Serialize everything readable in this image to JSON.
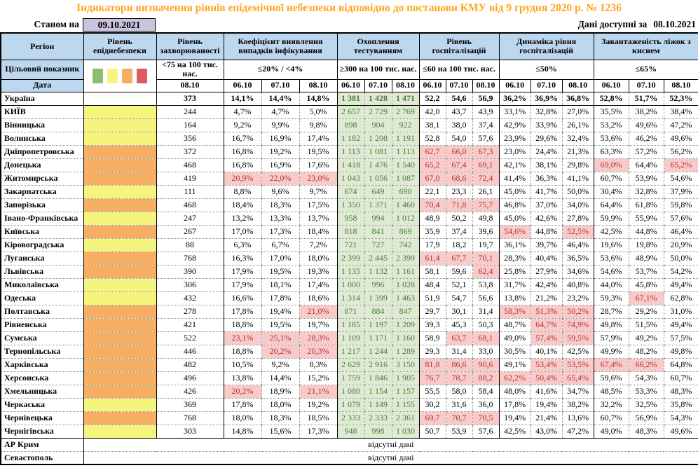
{
  "title": "Індикатори визначення рівнів епідемічної небезпеки відповідно до постанови КМУ від 9 грудня 2020 р. № 1236",
  "as_of_label": "Станом на",
  "as_of_date": "09.10.2021",
  "available_label": "Дані доступні за",
  "available_date": "08.10.2021",
  "no_data_text": "відсутні дані",
  "legend_colors": [
    "#8CBF72",
    "#F5F57E",
    "#F5AE62",
    "#E05C5C"
  ],
  "level_colors": {
    "yellow": "#F5F57E",
    "orange": "#F5AE62"
  },
  "header": {
    "region": "Регіон",
    "target_label": "Цільовий показник",
    "date_label": "Дата",
    "groups": [
      {
        "name": "Рівень епіднебезпеки",
        "target": "",
        "dates": []
      },
      {
        "name": "Рівень захворюваності",
        "target": "<75 на 100 тис. нас.",
        "dates": [
          "08.10"
        ]
      },
      {
        "name": "Коефіцієнт виявлення випадків інфікування",
        "target": "≤20% / <4%",
        "dates": [
          "06.10",
          "07.10",
          "08.10"
        ]
      },
      {
        "name": "Охоплення тестуванням",
        "target": "≥300 на 100 тис. нас.",
        "dates": [
          "06.10",
          "07.10",
          "08.10"
        ]
      },
      {
        "name": "Рівень госпіталізацій",
        "target": "≤60 на 100 тис. нас.",
        "dates": [
          "06.10",
          "07.10",
          "08.10"
        ]
      },
      {
        "name": "Динаміка рівня госпіталізацій",
        "target": "≤50%",
        "dates": [
          "06.10",
          "07.10",
          "08.10"
        ]
      },
      {
        "name": "Завантаженість ліжок з киснем",
        "target": "≤65%",
        "dates": [
          "06.10",
          "07.10",
          "08.10"
        ]
      }
    ]
  },
  "rows": [
    {
      "region": "Україна",
      "national": true,
      "level": "",
      "incidence": "373",
      "detection": [
        "14,1%",
        "14,4%",
        "14,8%"
      ],
      "testing": [
        "1 381",
        "1 428",
        "1 471"
      ],
      "hosp": [
        "52,2",
        "54,6",
        "56,9"
      ],
      "dynamics": [
        "36,2%",
        "36,9%",
        "36,8%"
      ],
      "beds": [
        "52,8%",
        "51,7%",
        "52,3%"
      ]
    },
    {
      "region": "КИЇВ",
      "level": "yellow",
      "incidence": "244",
      "detection": [
        "4,7%",
        "4,7%",
        "5,0%"
      ],
      "testing": [
        "2 657",
        "2 729",
        "2 769"
      ],
      "hosp": [
        "42,0",
        "43,7",
        "43,9"
      ],
      "dynamics": [
        "33,1%",
        "32,8%",
        "27,0%"
      ],
      "beds": [
        "35,5%",
        "38,2%",
        "38,4%"
      ]
    },
    {
      "region": "Вінницька",
      "level": "yellow",
      "incidence": "164",
      "detection": [
        "9,2%",
        "9,9%",
        "9,8%"
      ],
      "testing": [
        "898",
        "904",
        "922"
      ],
      "hosp": [
        "38,1",
        "38,0",
        "37,4"
      ],
      "dynamics": [
        "42,9%",
        "33,9%",
        "26,1%"
      ],
      "beds": [
        "53,2%",
        "49,6%",
        "47,2%"
      ]
    },
    {
      "region": "Волинська",
      "level": "yellow",
      "incidence": "356",
      "detection": [
        "16,7%",
        "16,9%",
        "17,4%"
      ],
      "testing": [
        "1 182",
        "1 208",
        "1 191"
      ],
      "hosp": [
        "52,8",
        "54,0",
        "57,6"
      ],
      "dynamics": [
        "23,9%",
        "29,6%",
        "32,4%"
      ],
      "beds": [
        "53,6%",
        "46,2%",
        "49,6%"
      ]
    },
    {
      "region": "Дніпропетровська",
      "level": "orange",
      "incidence": "372",
      "detection": [
        "16,8%",
        "19,2%",
        "19,5%"
      ],
      "testing": [
        "1 113",
        "1 081",
        "1 113"
      ],
      "hosp": [
        "62,7",
        "66,0",
        "67,3"
      ],
      "hosp_r": [
        1,
        1,
        1
      ],
      "dynamics": [
        "23,0%",
        "24,4%",
        "21,3%"
      ],
      "beds": [
        "63,3%",
        "57,2%",
        "56,2%"
      ]
    },
    {
      "region": "Донецька",
      "level": "orange",
      "incidence": "468",
      "detection": [
        "16,8%",
        "16,9%",
        "17,6%"
      ],
      "testing": [
        "1 418",
        "1 476",
        "1 540"
      ],
      "hosp": [
        "65,2",
        "67,4",
        "69,1"
      ],
      "hosp_r": [
        1,
        1,
        1
      ],
      "dynamics": [
        "42,1%",
        "38,1%",
        "29,8%"
      ],
      "beds": [
        "69,0%",
        "64,4%",
        "65,2%"
      ],
      "bed_r": [
        1,
        0,
        1
      ]
    },
    {
      "region": "Житомирська",
      "level": "orange",
      "incidence": "419",
      "detection": [
        "20,9%",
        "22,0%",
        "23,0%"
      ],
      "det_r": [
        1,
        1,
        1
      ],
      "testing": [
        "1 043",
        "1 056",
        "1 087"
      ],
      "hosp": [
        "67,0",
        "68,6",
        "72,4"
      ],
      "hosp_r": [
        1,
        1,
        1
      ],
      "dynamics": [
        "41,4%",
        "36,3%",
        "41,1%"
      ],
      "beds": [
        "60,7%",
        "53,9%",
        "54,6%"
      ]
    },
    {
      "region": "Закарпатська",
      "level": "yellow",
      "incidence": "111",
      "detection": [
        "8,8%",
        "9,6%",
        "9,7%"
      ],
      "testing": [
        "674",
        "649",
        "690"
      ],
      "hosp": [
        "22,1",
        "23,3",
        "26,1"
      ],
      "dynamics": [
        "45,0%",
        "41,7%",
        "50,0%"
      ],
      "beds": [
        "30,4%",
        "32,8%",
        "37,9%"
      ]
    },
    {
      "region": "Запорізька",
      "level": "orange",
      "incidence": "468",
      "detection": [
        "18,4%",
        "18,3%",
        "17,5%"
      ],
      "testing": [
        "1 350",
        "1 371",
        "1 460"
      ],
      "hosp": [
        "70,4",
        "71,8",
        "75,7"
      ],
      "hosp_r": [
        1,
        1,
        1
      ],
      "dynamics": [
        "46,8%",
        "37,0%",
        "34,0%"
      ],
      "beds": [
        "64,4%",
        "61,8%",
        "59,8%"
      ]
    },
    {
      "region": "Івано-Франківська",
      "level": "yellow",
      "incidence": "247",
      "detection": [
        "13,2%",
        "13,3%",
        "13,7%"
      ],
      "testing": [
        "958",
        "994",
        "1 012"
      ],
      "hosp": [
        "48,9",
        "50,2",
        "49,8"
      ],
      "dynamics": [
        "45,0%",
        "42,6%",
        "27,8%"
      ],
      "beds": [
        "59,9%",
        "55,9%",
        "57,6%"
      ]
    },
    {
      "region": "Київська",
      "level": "orange",
      "incidence": "267",
      "detection": [
        "17,0%",
        "17,3%",
        "18,4%"
      ],
      "testing": [
        "818",
        "841",
        "869"
      ],
      "hosp": [
        "35,9",
        "37,4",
        "39,6"
      ],
      "dynamics": [
        "54,6%",
        "44,8%",
        "52,5%"
      ],
      "dyn_r": [
        1,
        0,
        1
      ],
      "beds": [
        "42,5%",
        "44,8%",
        "46,4%"
      ]
    },
    {
      "region": "Кіровоградська",
      "level": "yellow",
      "incidence": "88",
      "detection": [
        "6,3%",
        "6,7%",
        "7,2%"
      ],
      "testing": [
        "721",
        "727",
        "742"
      ],
      "hosp": [
        "17,9",
        "18,2",
        "19,7"
      ],
      "dynamics": [
        "36,1%",
        "39,7%",
        "46,4%"
      ],
      "beds": [
        "19,6%",
        "19,8%",
        "20,9%"
      ]
    },
    {
      "region": "Луганська",
      "level": "orange",
      "incidence": "768",
      "detection": [
        "16,3%",
        "17,0%",
        "18,0%"
      ],
      "testing": [
        "2 399",
        "2 445",
        "2 399"
      ],
      "hosp": [
        "61,4",
        "67,7",
        "70,1"
      ],
      "hosp_r": [
        1,
        1,
        1
      ],
      "dynamics": [
        "28,3%",
        "40,4%",
        "36,5%"
      ],
      "beds": [
        "53,6%",
        "48,9%",
        "50,0%"
      ]
    },
    {
      "region": "Львівська",
      "level": "orange",
      "incidence": "390",
      "detection": [
        "17,9%",
        "19,5%",
        "19,3%"
      ],
      "testing": [
        "1 135",
        "1 132",
        "1 161"
      ],
      "hosp": [
        "58,1",
        "59,6",
        "62,4"
      ],
      "hosp_r": [
        0,
        0,
        1
      ],
      "dynamics": [
        "25,8%",
        "27,9%",
        "34,6%"
      ],
      "beds": [
        "54,6%",
        "53,7%",
        "54,2%"
      ]
    },
    {
      "region": "Миколаївська",
      "level": "yellow",
      "incidence": "306",
      "detection": [
        "17,9%",
        "18,1%",
        "17,4%"
      ],
      "testing": [
        "1 000",
        "996",
        "1 028"
      ],
      "hosp": [
        "48,4",
        "52,1",
        "53,8"
      ],
      "dynamics": [
        "31,7%",
        "42,4%",
        "40,8%"
      ],
      "beds": [
        "44,0%",
        "45,8%",
        "49,4%"
      ]
    },
    {
      "region": "Одеська",
      "level": "yellow",
      "incidence": "432",
      "detection": [
        "16,6%",
        "17,8%",
        "18,6%"
      ],
      "testing": [
        "1 314",
        "1 399",
        "1 463"
      ],
      "hosp": [
        "51,9",
        "54,7",
        "56,6"
      ],
      "dynamics": [
        "13,8%",
        "21,2%",
        "23,2%"
      ],
      "beds": [
        "59,3%",
        "67,1%",
        "62,8%"
      ],
      "bed_r": [
        0,
        1,
        0
      ]
    },
    {
      "region": "Полтавська",
      "level": "orange",
      "incidence": "278",
      "detection": [
        "17,8%",
        "19,4%",
        "21,0%"
      ],
      "det_r": [
        0,
        0,
        1
      ],
      "testing": [
        "871",
        "884",
        "847"
      ],
      "hosp": [
        "29,7",
        "30,1",
        "31,4"
      ],
      "dynamics": [
        "58,3%",
        "51,3%",
        "50,2%"
      ],
      "dyn_r": [
        1,
        1,
        1
      ],
      "beds": [
        "28,7%",
        "29,2%",
        "31,0%"
      ]
    },
    {
      "region": "Рівненська",
      "level": "orange",
      "incidence": "421",
      "detection": [
        "18,8%",
        "19,5%",
        "19,7%"
      ],
      "testing": [
        "1 185",
        "1 197",
        "1 209"
      ],
      "hosp": [
        "39,3",
        "45,3",
        "50,3"
      ],
      "dynamics": [
        "48,7%",
        "64,7%",
        "74,9%"
      ],
      "dyn_r": [
        0,
        1,
        1
      ],
      "beds": [
        "49,8%",
        "51,5%",
        "49,4%"
      ]
    },
    {
      "region": "Сумська",
      "level": "orange",
      "incidence": "522",
      "detection": [
        "23,1%",
        "25,1%",
        "28,3%"
      ],
      "det_r": [
        1,
        1,
        1
      ],
      "testing": [
        "1 109",
        "1 171",
        "1 160"
      ],
      "hosp": [
        "58,9",
        "63,7",
        "68,1"
      ],
      "hosp_r": [
        0,
        1,
        1
      ],
      "dynamics": [
        "49,0%",
        "57,4%",
        "59,5%"
      ],
      "dyn_r": [
        0,
        1,
        1
      ],
      "beds": [
        "57,9%",
        "49,2%",
        "57,5%"
      ]
    },
    {
      "region": "Тернопільська",
      "level": "orange",
      "incidence": "446",
      "detection": [
        "18,8%",
        "20,2%",
        "20,3%"
      ],
      "det_r": [
        0,
        1,
        1
      ],
      "testing": [
        "1 217",
        "1 244",
        "1 289"
      ],
      "hosp": [
        "29,3",
        "31,4",
        "33,0"
      ],
      "dynamics": [
        "30,5%",
        "40,1%",
        "42,5%"
      ],
      "beds": [
        "49,9%",
        "48,2%",
        "49,8%"
      ]
    },
    {
      "region": "Харківська",
      "level": "orange",
      "incidence": "482",
      "detection": [
        "10,5%",
        "9,2%",
        "8,3%"
      ],
      "testing": [
        "2 629",
        "2 916",
        "3 150"
      ],
      "hosp": [
        "81,8",
        "86,6",
        "90,6"
      ],
      "hosp_r": [
        1,
        1,
        1
      ],
      "dynamics": [
        "49,1%",
        "53,4%",
        "53,5%"
      ],
      "dyn_r": [
        0,
        1,
        1
      ],
      "beds": [
        "67,4%",
        "66,2%",
        "64,8%"
      ],
      "bed_r": [
        1,
        1,
        0
      ]
    },
    {
      "region": "Херсонська",
      "level": "orange",
      "incidence": "496",
      "detection": [
        "13,8%",
        "14,4%",
        "15,2%"
      ],
      "testing": [
        "1 759",
        "1 846",
        "1 905"
      ],
      "hosp": [
        "76,7",
        "78,7",
        "88,2"
      ],
      "hosp_r": [
        1,
        1,
        1
      ],
      "dynamics": [
        "62,2%",
        "50,4%",
        "65,4%"
      ],
      "dyn_r": [
        1,
        1,
        1
      ],
      "beds": [
        "59,6%",
        "54,3%",
        "60,7%"
      ]
    },
    {
      "region": "Хмельницька",
      "level": "orange",
      "incidence": "426",
      "detection": [
        "20,2%",
        "18,9%",
        "21,1%"
      ],
      "det_r": [
        1,
        0,
        1
      ],
      "testing": [
        "1 080",
        "1 154",
        "1 157"
      ],
      "hosp": [
        "55,5",
        "58,0",
        "58,4"
      ],
      "dynamics": [
        "48,0%",
        "41,6%",
        "34,7%"
      ],
      "beds": [
        "48,5%",
        "53,3%",
        "48,3%"
      ]
    },
    {
      "region": "Черкаська",
      "level": "yellow",
      "incidence": "369",
      "detection": [
        "17,8%",
        "18,0%",
        "19,2%"
      ],
      "testing": [
        "1 079",
        "1 149",
        "1 155"
      ],
      "hosp": [
        "30,2",
        "31,6",
        "36,0"
      ],
      "dynamics": [
        "17,8%",
        "19,4%",
        "38,2%"
      ],
      "beds": [
        "32,2%",
        "32,5%",
        "35,8%"
      ]
    },
    {
      "region": "Чернівецька",
      "level": "orange",
      "incidence": "768",
      "detection": [
        "18,0%",
        "18,3%",
        "18,5%"
      ],
      "testing": [
        "2 333",
        "2 333",
        "2 361"
      ],
      "hosp": [
        "69,7",
        "70,7",
        "70,5"
      ],
      "hosp_r": [
        1,
        1,
        1
      ],
      "dynamics": [
        "19,4%",
        "21,4%",
        "13,6%"
      ],
      "beds": [
        "60,7%",
        "56,9%",
        "54,3%"
      ]
    },
    {
      "region": "Чернігівська",
      "level": "yellow",
      "incidence": "303",
      "detection": [
        "14,8%",
        "15,6%",
        "17,3%"
      ],
      "testing": [
        "948",
        "998",
        "1 030"
      ],
      "hosp": [
        "50,7",
        "53,9",
        "57,6"
      ],
      "dynamics": [
        "42,5%",
        "43,0%",
        "47,2%"
      ],
      "beds": [
        "49,0%",
        "48,3%",
        "49,6%"
      ]
    }
  ],
  "no_data_rows": [
    {
      "region": "АР Крим"
    },
    {
      "region": "Севастополь"
    }
  ]
}
